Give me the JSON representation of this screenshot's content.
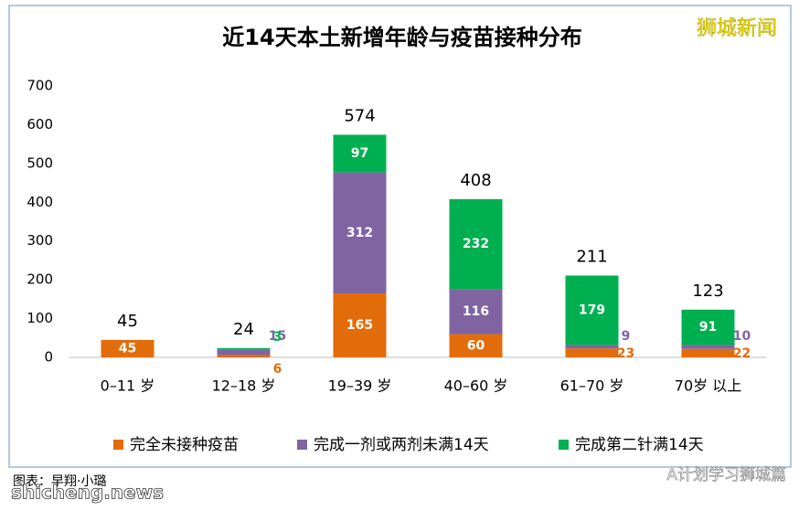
{
  "chart_data": {
    "type": "stacked_bar",
    "title": "近14天本土新增年龄与疫苗接种分布",
    "categories": [
      "0–11 岁",
      "12–18 岁",
      "19–39 岁",
      "40–60 岁",
      "61–70 岁",
      "70岁 以上"
    ],
    "series": [
      {
        "name": "完全未接种疫苗",
        "color": "#e36c0a",
        "values": [
          45,
          6,
          165,
          60,
          23,
          22
        ]
      },
      {
        "name": "完成一剂或两剂未满14天",
        "color": "#8064a2",
        "values": [
          null,
          15,
          312,
          116,
          9,
          10
        ]
      },
      {
        "name": "完成第二针满14天",
        "color": "#00b050",
        "values": [
          null,
          3,
          97,
          232,
          179,
          91
        ]
      }
    ],
    "totals": [
      45,
      24,
      574,
      408,
      211,
      123
    ],
    "ylim": [
      0,
      700
    ],
    "yticks": [
      0,
      100,
      200,
      300,
      400,
      500,
      600,
      700
    ],
    "grid": false
  },
  "watermark": "狮城新闻",
  "credit": "图表：早翔·小璐",
  "site": "shicheng.news",
  "account": "A计划学习狮城篇"
}
